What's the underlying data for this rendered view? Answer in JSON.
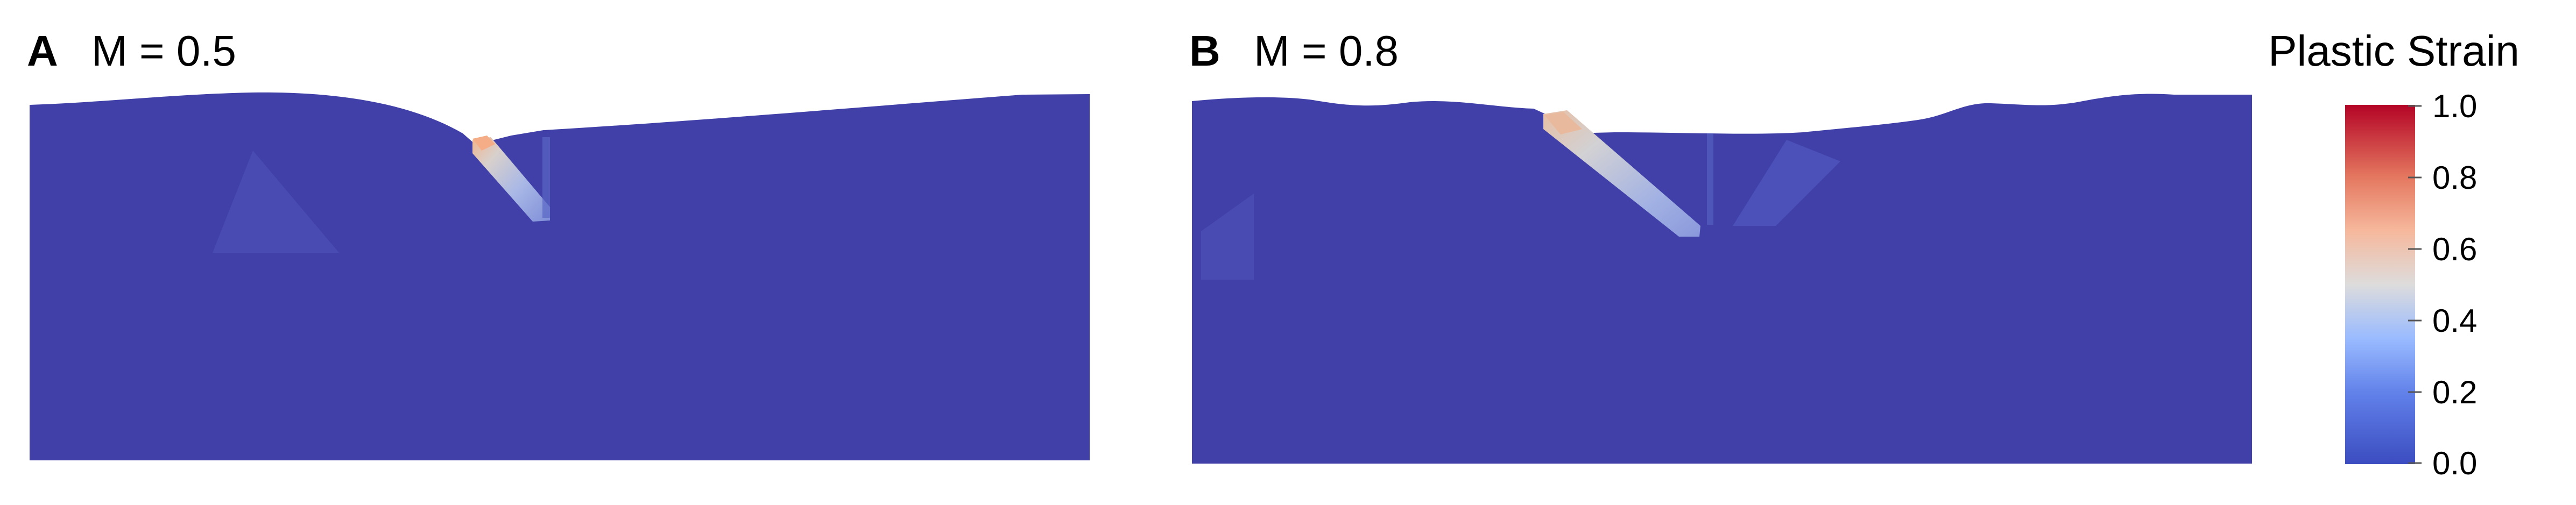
{
  "panels": [
    {
      "letter": "A",
      "parameter": "M = 0.5"
    },
    {
      "letter": "B",
      "parameter": "M = 0.8"
    }
  ],
  "colorbar": {
    "title": "Plastic Strain",
    "ticks": [
      "1.0",
      "0.8",
      "0.6",
      "0.4",
      "0.2",
      "0.0"
    ],
    "range": [
      0.0,
      1.0
    ],
    "colormap": "cool-to-warm",
    "colors": {
      "low": "#3b4cc0",
      "mid": "#dddddd",
      "high": "#b40426"
    }
  },
  "colors": {
    "material": "#4040a8",
    "background": "#ffffff"
  }
}
